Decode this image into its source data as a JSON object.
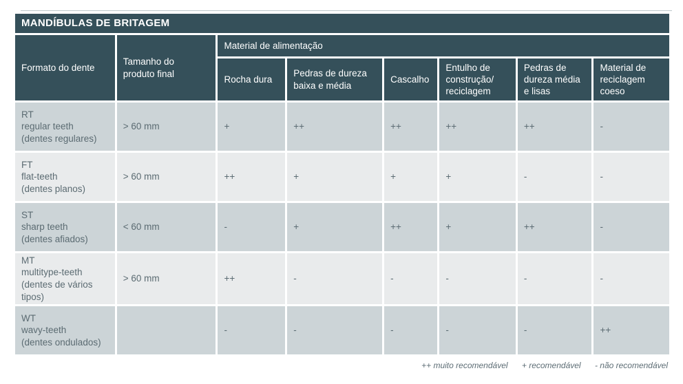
{
  "title": "MANDÍBULAS DE BRITAGEM",
  "table": {
    "col1_header": "Formato do dente",
    "col2_header": "Tamanho do\nproduto final",
    "feed_header": "Material de alimentação",
    "material_columns": [
      "Rocha dura",
      "Pedras de dureza\nbaixa e média",
      "Cascalho",
      "Entulho de\nconstrução/\nreciclagem",
      "Pedras de\ndureza média\ne lisas",
      "Material de\nreciclagem\ncoeso"
    ],
    "rows": [
      {
        "label": "RT\nregular teeth\n(dentes regulares)",
        "size": "> 60 mm",
        "values": [
          "+",
          "++",
          "++",
          "++",
          "++",
          "-"
        ]
      },
      {
        "label": "FT\nflat-teeth\n(dentes planos)",
        "size": "> 60 mm",
        "values": [
          "++",
          "+",
          "+",
          "+",
          "-",
          "-"
        ]
      },
      {
        "label": "ST\nsharp teeth\n(dentes afiados)",
        "size": "< 60 mm",
        "values": [
          "-",
          "+",
          "++",
          "+",
          "++",
          "-"
        ]
      },
      {
        "label": "MT\nmultitype-teeth\n(dentes de vários\ntipos)",
        "size": "> 60 mm",
        "values": [
          "++",
          "-",
          "-",
          "-",
          "-",
          "-"
        ]
      },
      {
        "label": "WT\nwavy-teeth\n(dentes ondulados)",
        "size": "",
        "values": [
          "-",
          "-",
          "-",
          "-",
          "-",
          "++"
        ]
      }
    ]
  },
  "legend": {
    "items": [
      "++ muito recomendável",
      "+ recomendável",
      "- não recomendável"
    ]
  },
  "colors": {
    "header_bg": "#35505a",
    "row_odd": "#ccd4d7",
    "row_even": "#e9ebec",
    "cell_text": "#5b6b72",
    "header_text": "#ffffff",
    "legend_text": "#5d6d75"
  }
}
